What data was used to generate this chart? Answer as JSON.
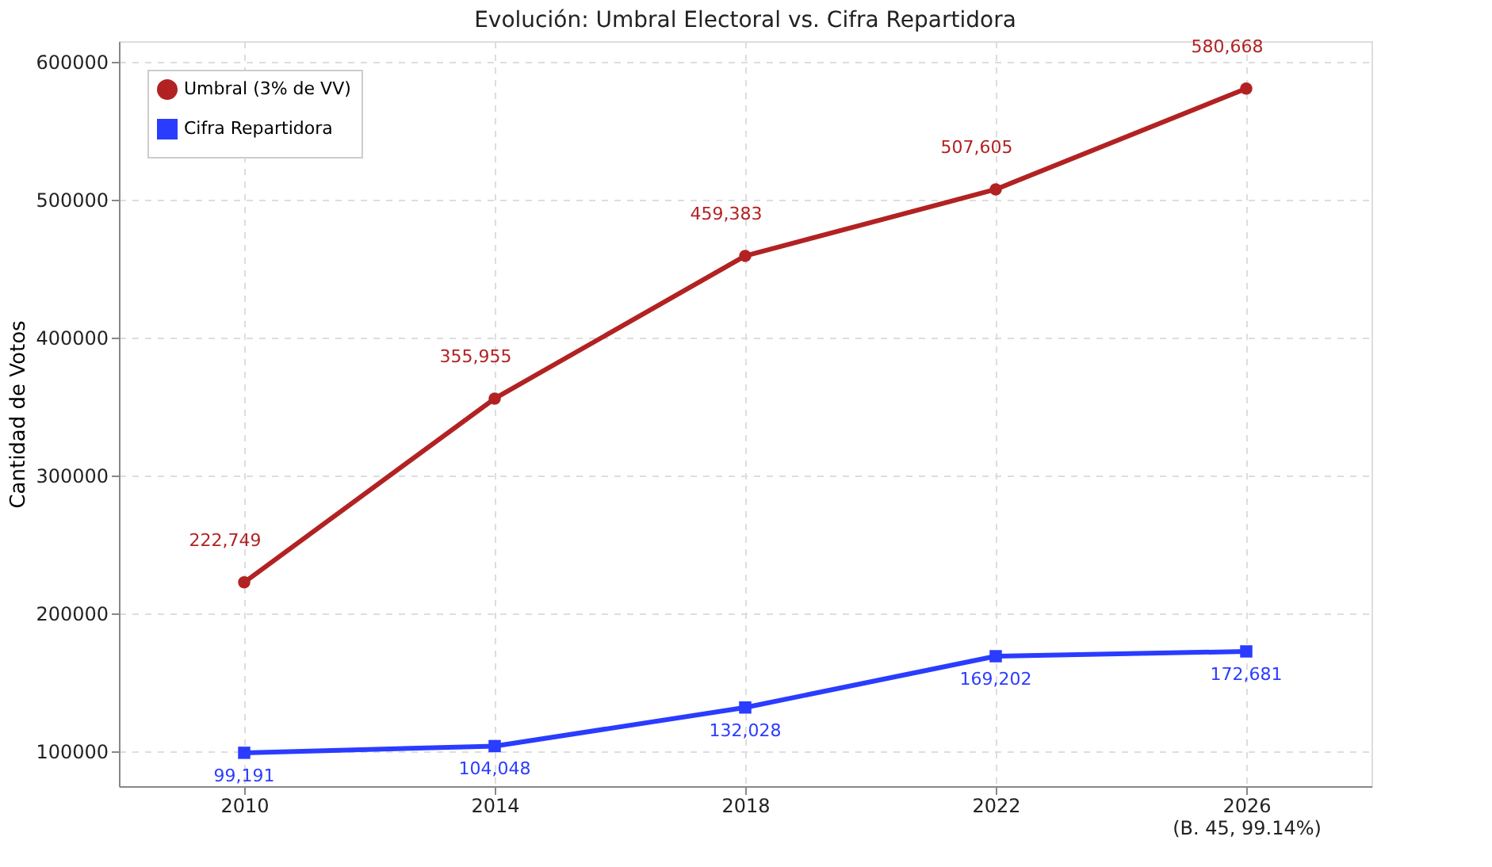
{
  "chart_data": {
    "type": "line",
    "title": "Evolución: Umbral Electoral vs. Cifra Repartidora",
    "ylabel": "Cantidad de Votos",
    "categories": [
      "2010",
      "2014",
      "2018",
      "2022",
      "2026\n(B. 45, 99.14%)"
    ],
    "series": [
      {
        "name": "Umbral (3% de VV)",
        "color": "#b22222",
        "marker": "circle",
        "values": [
          222749,
          355955,
          459383,
          507605,
          580668
        ],
        "value_labels": [
          "222,749",
          "355,955",
          "459,383",
          "507,605",
          "580,668"
        ]
      },
      {
        "name": "Cifra Repartidora",
        "color": "#2a3cff",
        "marker": "square",
        "values": [
          99191,
          104048,
          132028,
          169202,
          172681
        ],
        "value_labels": [
          "99,191",
          "104,048",
          "132,028",
          "169,202",
          "172,681"
        ]
      }
    ],
    "ylim": [
      75000,
      615000
    ],
    "yticks": [
      100000,
      200000,
      300000,
      400000,
      500000,
      600000
    ],
    "grid": true,
    "legend": "top left",
    "line_style": "solid"
  }
}
